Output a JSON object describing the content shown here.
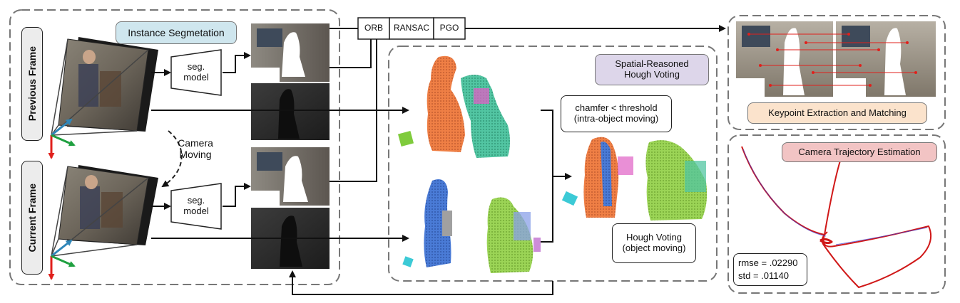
{
  "frames": {
    "previous": "Previous Frame",
    "current": "Current Frame",
    "camera_motion": "Camera\nMoving"
  },
  "segmentation": {
    "title": "Instance Segmetation",
    "model_label": "seg.\nmodel"
  },
  "methods": [
    "ORB",
    "RANSAC",
    "PGO"
  ],
  "reasoning": {
    "title": "Spatial-Reasoned\nHough Voting",
    "condition_intra": "chamfer < threshold\n(intra-object moving)",
    "condition_object": "Hough Voting\n(object moving)"
  },
  "keypoints": {
    "title": "Keypoint Extraction and Matching"
  },
  "trajectory": {
    "title": "Camera Trajectory Estimation",
    "rmse": "rmse = .02290",
    "std": "std = .01140"
  },
  "colors": {
    "segmentation_tag": "#cfe6ee",
    "reasoning_tag": "#ddd6ea",
    "keypoint_tag": "#fbe3cc",
    "trajectory_tag": "#f2c4c4",
    "trajectory_line": "#d01818",
    "point_orange": "#ef7f45",
    "point_teal": "#52c5a2",
    "point_blue": "#4a7bd6",
    "point_green": "#9bd456"
  }
}
